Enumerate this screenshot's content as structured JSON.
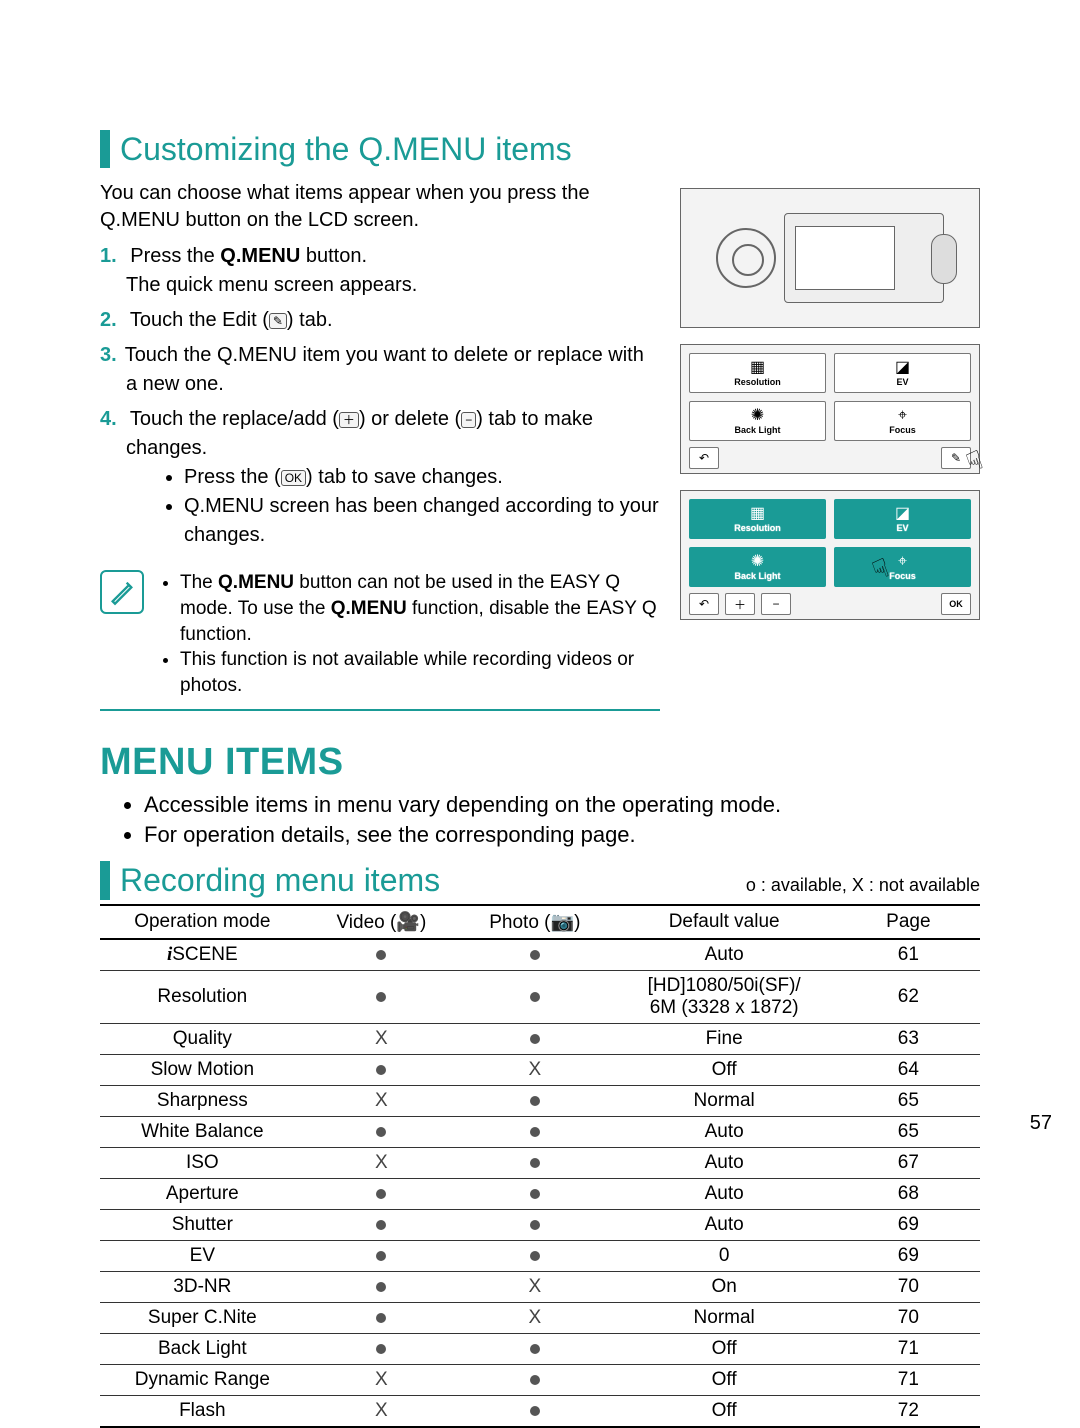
{
  "colors": {
    "accent": "#1a9b96",
    "text": "#000000",
    "rule": "#333333"
  },
  "section1": {
    "title": "Customizing the Q.MENU items",
    "intro": "You can choose what items appear when you press the Q.MENU button on the LCD screen.",
    "steps": {
      "s1a": "Press the ",
      "s1b": "Q.MENU",
      "s1c": " button.",
      "s1d": "The quick menu screen appears.",
      "s2a": "Touch the Edit (",
      "s2b": ") tab.",
      "s3": "Touch the Q.MENU item you want to delete or replace with a new one.",
      "s4a": "Touch the replace/add (",
      "s4b": ") or delete (",
      "s4c": ") tab to make changes.",
      "s4_b1a": "Press the (",
      "s4_b1b": ") tab to save changes.",
      "s4_b2": "Q.MENU screen has been changed according to your changes."
    },
    "note": {
      "n1a": "The ",
      "n1b": "Q.MENU",
      "n1c": " button can not be used in the EASY Q mode. To use the ",
      "n1d": "Q.MENU",
      "n1e": " function, disable the EASY Q function.",
      "n2": "This function is not available while recording videos or photos."
    }
  },
  "menuItems": {
    "title": "MENU ITEMS",
    "bullets": [
      "Accessible items in menu vary depending on the operating mode.",
      "For operation details, see the corresponding page."
    ]
  },
  "recording": {
    "title": "Recording menu items",
    "legend": "o : available, X : not available",
    "columns": [
      "Operation mode",
      "Video (🎥)",
      "Photo (📷)",
      "Default value",
      "Page"
    ],
    "rows": [
      {
        "name": "iSCENE",
        "video": "dot",
        "photo": "dot",
        "default": "Auto",
        "page": "61",
        "italicPrefix": true
      },
      {
        "name": "Resolution",
        "video": "dot",
        "photo": "dot",
        "default": "[HD]1080/50i(SF)/\n6M (3328 x 1872)",
        "page": "62"
      },
      {
        "name": "Quality",
        "video": "X",
        "photo": "dot",
        "default": "Fine",
        "page": "63"
      },
      {
        "name": "Slow Motion",
        "video": "dot",
        "photo": "X",
        "default": "Off",
        "page": "64"
      },
      {
        "name": "Sharpness",
        "video": "X",
        "photo": "dot",
        "default": "Normal",
        "page": "65"
      },
      {
        "name": "White Balance",
        "video": "dot",
        "photo": "dot",
        "default": "Auto",
        "page": "65"
      },
      {
        "name": "ISO",
        "video": "X",
        "photo": "dot",
        "default": "Auto",
        "page": "67"
      },
      {
        "name": "Aperture",
        "video": "dot",
        "photo": "dot",
        "default": "Auto",
        "page": "68"
      },
      {
        "name": "Shutter",
        "video": "dot",
        "photo": "dot",
        "default": "Auto",
        "page": "69"
      },
      {
        "name": "EV",
        "video": "dot",
        "photo": "dot",
        "default": "0",
        "page": "69"
      },
      {
        "name": "3D-NR",
        "video": "dot",
        "photo": "X",
        "default": "On",
        "page": "70"
      },
      {
        "name": "Super C.Nite",
        "video": "dot",
        "photo": "X",
        "default": "Normal",
        "page": "70"
      },
      {
        "name": "Back Light",
        "video": "dot",
        "photo": "dot",
        "default": "Off",
        "page": "71"
      },
      {
        "name": "Dynamic Range",
        "video": "X",
        "photo": "dot",
        "default": "Off",
        "page": "71"
      },
      {
        "name": "Flash",
        "video": "X",
        "photo": "dot",
        "default": "Off",
        "page": "72"
      }
    ]
  },
  "lcd_tiles": {
    "t1": "Resolution",
    "t1_ico": "▦",
    "t2": "EV",
    "t2_ico": "◪",
    "t3": "Back Light",
    "t3_ico": "✺",
    "t4": "Focus",
    "t4_ico": "⌖"
  },
  "lcd_btns": {
    "back": "↶",
    "add": "＋",
    "del": "−",
    "ok": "OK"
  },
  "pageNumber": "57"
}
